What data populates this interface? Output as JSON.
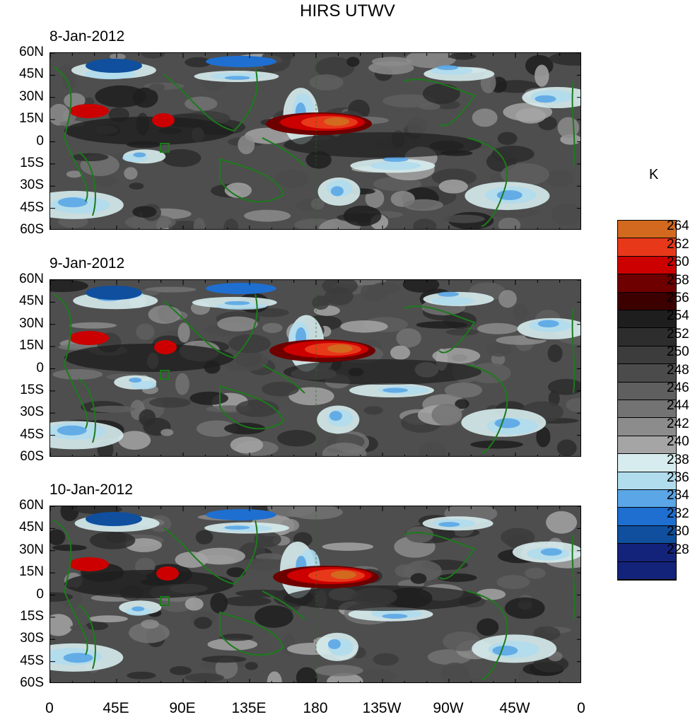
{
  "title": "HIRS UTWV",
  "panels": [
    {
      "date": "8-Jan-2012"
    },
    {
      "date": "9-Jan-2012"
    },
    {
      "date": "10-Jan-2012"
    }
  ],
  "lat_labels": [
    "60N",
    "45N",
    "30N",
    "15N",
    "0",
    "15S",
    "30S",
    "45S",
    "60S"
  ],
  "lon_labels": [
    "0",
    "45E",
    "90E",
    "135E",
    "180",
    "135W",
    "90W",
    "45W",
    "0"
  ],
  "colorbar": {
    "unit": "K",
    "levels": [
      "264",
      "262",
      "260",
      "258",
      "256",
      "254",
      "252",
      "250",
      "248",
      "246",
      "244",
      "242",
      "240",
      "238",
      "236",
      "234",
      "232",
      "230",
      "228"
    ],
    "colors": [
      "#d2691e",
      "#e8381a",
      "#cc0000",
      "#6e0000",
      "#3c0000",
      "#1e1e1e",
      "#2d2d2d",
      "#3c3c3c",
      "#4b4b4b",
      "#5f5f5f",
      "#737373",
      "#8c8c8c",
      "#a5a5a5",
      "#d7ecee",
      "#b0dced",
      "#5aa6e6",
      "#1e6fd0",
      "#0f4f9e",
      "#14237a"
    ]
  },
  "map_colors": {
    "coast": "#1b7b1b"
  }
}
